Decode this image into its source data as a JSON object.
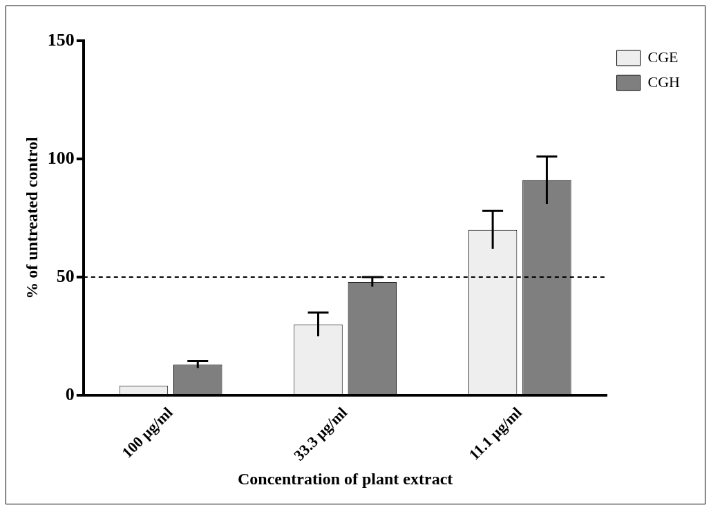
{
  "chart_data": {
    "type": "bar",
    "xlabel": "Concentration of plant extract",
    "ylabel": "% of untreated control",
    "categories": [
      "100 µg/ml",
      "33.3 µg/ml",
      "11.1 µg/ml"
    ],
    "series": [
      {
        "name": "CGE",
        "color": "#eeeeee",
        "values": [
          4,
          30,
          70
        ],
        "errors": [
          null,
          5,
          8
        ]
      },
      {
        "name": "CGH",
        "color": "#7f7f7f",
        "values": [
          13,
          48,
          91
        ],
        "errors": [
          1.5,
          2,
          10
        ]
      }
    ],
    "ylim": [
      0,
      150
    ],
    "yticks": [
      0,
      50,
      100,
      150
    ],
    "grid": false,
    "legend": "top right",
    "ref_lines": [
      {
        "axis": "y",
        "value": 50,
        "line_style": "dashed",
        "color": "#000000"
      }
    ]
  }
}
